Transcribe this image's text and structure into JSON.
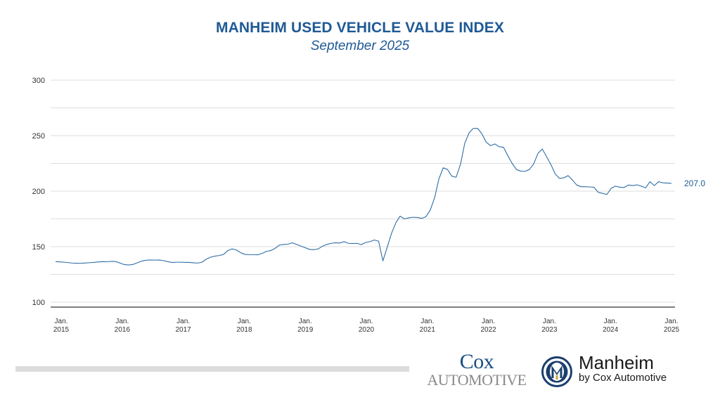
{
  "header": {
    "title": "MANHEIM USED VEHICLE VALUE INDEX",
    "subtitle": "September 2025"
  },
  "chart_data": {
    "type": "line",
    "title": "MANHEIM USED VEHICLE VALUE INDEX",
    "subtitle": "September 2025",
    "xlabel": "",
    "ylabel": "",
    "ylim": [
      100,
      300
    ],
    "yticks": [
      100,
      150,
      200,
      250,
      300
    ],
    "gridlines_every": 25,
    "grid": true,
    "legend": "none",
    "x_start": "Jan. 2015",
    "x_end": "Sep. 2025",
    "x_frequency": "monthly",
    "xtick_labels": [
      [
        "Jan.",
        "2015"
      ],
      [
        "Jan.",
        "2016"
      ],
      [
        "Jan.",
        "2017"
      ],
      [
        "Jan.",
        "2018"
      ],
      [
        "Jan.",
        "2019"
      ],
      [
        "Jan.",
        "2020"
      ],
      [
        "Jan.",
        "2021"
      ],
      [
        "Jan.",
        "2022"
      ],
      [
        "Jan.",
        "2023"
      ],
      [
        "Jan.",
        "2024"
      ],
      [
        "Jan.",
        "2025"
      ]
    ],
    "series": [
      {
        "name": "Manheim Used Vehicle Value Index",
        "color": "#2e6ea6",
        "values": [
          136.5,
          136.3,
          136.0,
          135.6,
          135.2,
          135.0,
          135.1,
          135.3,
          135.6,
          135.9,
          136.3,
          136.5,
          136.4,
          136.8,
          136.5,
          135.2,
          133.8,
          133.5,
          134.0,
          135.5,
          137.0,
          137.8,
          138.0,
          137.9,
          138.0,
          137.5,
          136.5,
          135.8,
          136.0,
          136.0,
          135.9,
          135.8,
          135.5,
          135.2,
          136.0,
          138.8,
          140.5,
          141.5,
          142.0,
          143.0,
          146.5,
          148.0,
          147.0,
          144.5,
          143.0,
          142.8,
          142.8,
          142.7,
          144.0,
          145.8,
          146.5,
          148.5,
          151.5,
          152.0,
          152.3,
          153.5,
          152.0,
          150.5,
          149.0,
          147.5,
          147.3,
          148.0,
          150.5,
          152.0,
          153.0,
          153.5,
          153.3,
          154.5,
          153.0,
          152.8,
          153.0,
          151.8,
          153.8,
          154.5,
          156.0,
          155.0,
          137.2,
          149.5,
          162.0,
          171.5,
          177.5,
          175.0,
          176.0,
          176.5,
          176.3,
          175.5,
          177.0,
          183.0,
          194.0,
          211.0,
          221.0,
          219.5,
          213.5,
          212.5,
          224.0,
          243.0,
          252.5,
          256.5,
          256.5,
          251.5,
          244.0,
          241.0,
          242.5,
          240.0,
          239.5,
          232.0,
          225.0,
          219.5,
          218.0,
          217.8,
          219.5,
          224.5,
          234.0,
          238.0,
          231.0,
          224.0,
          215.5,
          211.5,
          212.0,
          214.0,
          210.0,
          205.5,
          204.0,
          204.0,
          203.8,
          203.5,
          199.0,
          198.0,
          197.0,
          202.5,
          204.5,
          203.5,
          203.3,
          205.5,
          205.0,
          205.7,
          204.5,
          203.0,
          208.5,
          205.0,
          208.5,
          207.5,
          207.3,
          207.0
        ]
      }
    ],
    "end_label": "207.0"
  },
  "footer": {
    "cox_line1": "Cox",
    "cox_line2": "Automotive",
    "manheim_name": "Manheim",
    "manheim_sub": "by Cox Automotive",
    "manheim_logo_letter": "M"
  }
}
